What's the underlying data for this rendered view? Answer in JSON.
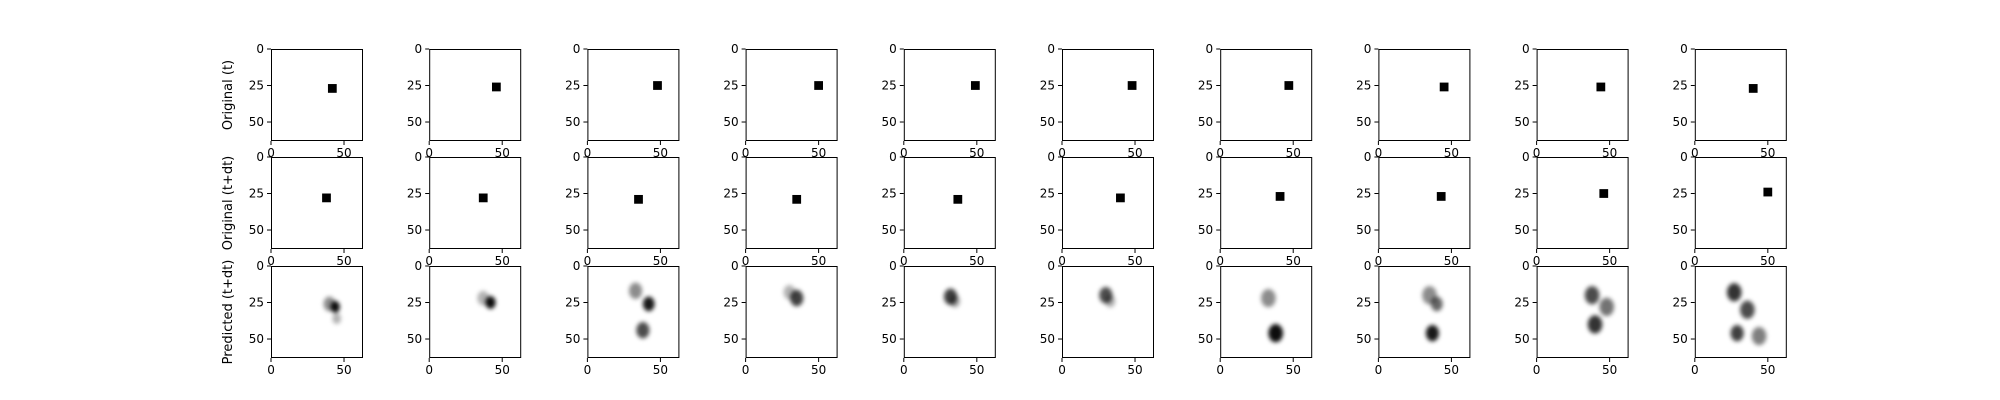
{
  "chart_data": {
    "type": "heatmap",
    "layout": {
      "rows": 3,
      "cols": 10
    },
    "row_labels": [
      "Original (t)",
      "Original (t+dt)",
      "Predicted (t+dt)"
    ],
    "x_ticks": [
      0,
      50
    ],
    "y_ticks": [
      0,
      25,
      50
    ],
    "xlim": [
      0,
      63
    ],
    "ylim": [
      63,
      0
    ],
    "colormap": "gray_r",
    "colors": {
      "ink": "#000000",
      "background": "#ffffff"
    },
    "original_t": [
      {
        "x": 42,
        "y": 27
      },
      {
        "x": 46,
        "y": 26
      },
      {
        "x": 48,
        "y": 25
      },
      {
        "x": 50,
        "y": 25
      },
      {
        "x": 49,
        "y": 25
      },
      {
        "x": 48,
        "y": 25
      },
      {
        "x": 47,
        "y": 25
      },
      {
        "x": 45,
        "y": 26
      },
      {
        "x": 44,
        "y": 26
      },
      {
        "x": 40,
        "y": 27
      }
    ],
    "original_t_dt": [
      {
        "x": 38,
        "y": 28
      },
      {
        "x": 37,
        "y": 28
      },
      {
        "x": 35,
        "y": 29
      },
      {
        "x": 35,
        "y": 29
      },
      {
        "x": 37,
        "y": 29
      },
      {
        "x": 40,
        "y": 28
      },
      {
        "x": 41,
        "y": 27
      },
      {
        "x": 43,
        "y": 27
      },
      {
        "x": 46,
        "y": 25
      },
      {
        "x": 50,
        "y": 24
      }
    ],
    "square_size": 6,
    "predicted_t_dt": [
      {
        "blobs": [
          {
            "x": 44,
            "y": 28,
            "a": 0.95,
            "r": 3.2
          },
          {
            "x": 40,
            "y": 26,
            "a": 0.45,
            "r": 4
          },
          {
            "x": 45,
            "y": 36,
            "a": 0.3,
            "r": 3
          }
        ]
      },
      {
        "blobs": [
          {
            "x": 42,
            "y": 25,
            "a": 0.95,
            "r": 3.5
          },
          {
            "x": 37,
            "y": 22,
            "a": 0.3,
            "r": 4
          }
        ]
      },
      {
        "blobs": [
          {
            "x": 42,
            "y": 26,
            "a": 0.9,
            "r": 4
          },
          {
            "x": 33,
            "y": 17,
            "a": 0.45,
            "r": 4.5
          },
          {
            "x": 38,
            "y": 44,
            "a": 0.7,
            "r": 4.5
          }
        ]
      },
      {
        "blobs": [
          {
            "x": 35,
            "y": 22,
            "a": 0.75,
            "r": 4.5
          },
          {
            "x": 30,
            "y": 18,
            "a": 0.3,
            "r": 4
          }
        ]
      },
      {
        "blobs": [
          {
            "x": 32,
            "y": 21,
            "a": 0.75,
            "r": 4.5
          },
          {
            "x": 35,
            "y": 24,
            "a": 0.35,
            "r": 3.5
          }
        ]
      },
      {
        "blobs": [
          {
            "x": 30,
            "y": 20,
            "a": 0.7,
            "r": 4.5
          },
          {
            "x": 33,
            "y": 24,
            "a": 0.3,
            "r": 3.5
          }
        ]
      },
      {
        "blobs": [
          {
            "x": 33,
            "y": 22,
            "a": 0.45,
            "r": 5
          },
          {
            "x": 38,
            "y": 46,
            "a": 0.95,
            "r": 5
          }
        ]
      },
      {
        "blobs": [
          {
            "x": 35,
            "y": 20,
            "a": 0.45,
            "r": 5
          },
          {
            "x": 40,
            "y": 26,
            "a": 0.6,
            "r": 4
          },
          {
            "x": 37,
            "y": 46,
            "a": 0.9,
            "r": 4.5
          }
        ]
      },
      {
        "blobs": [
          {
            "x": 38,
            "y": 20,
            "a": 0.7,
            "r": 5
          },
          {
            "x": 48,
            "y": 28,
            "a": 0.55,
            "r": 5
          },
          {
            "x": 40,
            "y": 40,
            "a": 0.8,
            "r": 5
          }
        ]
      },
      {
        "blobs": [
          {
            "x": 27,
            "y": 18,
            "a": 0.8,
            "r": 5
          },
          {
            "x": 36,
            "y": 30,
            "a": 0.7,
            "r": 5
          },
          {
            "x": 29,
            "y": 46,
            "a": 0.75,
            "r": 4.5
          },
          {
            "x": 44,
            "y": 48,
            "a": 0.5,
            "r": 5
          }
        ]
      }
    ]
  }
}
